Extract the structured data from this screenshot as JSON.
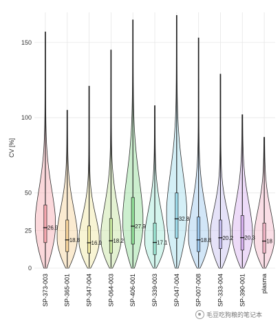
{
  "chart_data": {
    "type": "violin",
    "title": "",
    "xlabel": "",
    "ylabel": "CV [%]",
    "ylim": [
      0,
      170
    ],
    "yticks": [
      0,
      25,
      50,
      100,
      150
    ],
    "grid": true,
    "categories": [
      "SP-373-003",
      "SP-365-001",
      "SP-347-004",
      "SP-064-003",
      "SP-406-001",
      "SP-339-003",
      "SP-047-004",
      "SP-007-008",
      "SP-333-004",
      "SP-390-001",
      "plasma"
    ],
    "colors": [
      "#f7a8b0",
      "#f6d29a",
      "#efe7a0",
      "#c4e29b",
      "#8fdc95",
      "#9fe8d6",
      "#9fdcec",
      "#9cc7ee",
      "#c6bff0",
      "#d7b0ef",
      "#f4b6c8"
    ],
    "median_labels": [
      "26.9",
      "18.8",
      "16.9",
      "18.2",
      "27.9",
      "17.1",
      "32.8",
      "18.8",
      "20.2",
      "20.3",
      "18"
    ],
    "series": [
      {
        "name": "SP-373-003",
        "median": 26.9,
        "q1": 17,
        "q3": 42,
        "max": 157
      },
      {
        "name": "SP-365-001",
        "median": 18.8,
        "q1": 11,
        "q3": 32,
        "max": 105
      },
      {
        "name": "SP-347-004",
        "median": 16.9,
        "q1": 10,
        "q3": 28,
        "max": 121
      },
      {
        "name": "SP-064-003",
        "median": 18.2,
        "q1": 10,
        "q3": 33,
        "max": 145
      },
      {
        "name": "SP-406-001",
        "median": 27.9,
        "q1": 16,
        "q3": 47,
        "max": 165
      },
      {
        "name": "SP-339-003",
        "median": 17.1,
        "q1": 9,
        "q3": 30,
        "max": 108
      },
      {
        "name": "SP-047-004",
        "median": 32.8,
        "q1": 20,
        "q3": 50,
        "max": 168
      },
      {
        "name": "SP-007-008",
        "median": 18.8,
        "q1": 11,
        "q3": 34,
        "max": 153
      },
      {
        "name": "SP-333-004",
        "median": 20.2,
        "q1": 13,
        "q3": 32,
        "max": 129
      },
      {
        "name": "SP-390-001",
        "median": 20.3,
        "q1": 12,
        "q3": 35,
        "max": 102
      },
      {
        "name": "plasma",
        "median": 18,
        "q1": 10,
        "q3": 30,
        "max": 87
      }
    ]
  },
  "watermark": {
    "text": "毛豆吃狗粮的笔记本",
    "icon": "wechat-icon"
  }
}
